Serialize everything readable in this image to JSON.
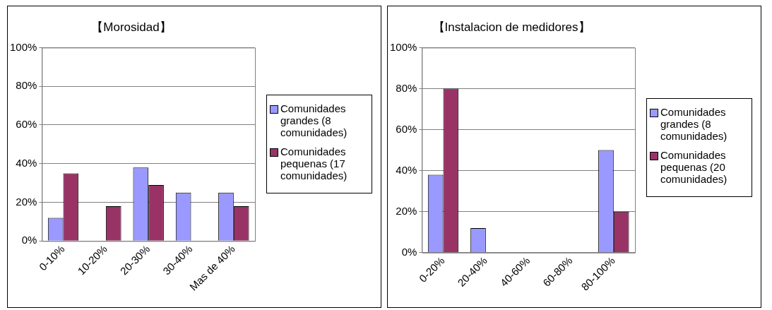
{
  "chart_data": [
    {
      "type": "bar",
      "title": "【Morosidad】",
      "categories": [
        "0-10%",
        "10-20%",
        "20-30%",
        "30-40%",
        "Mas de 40%"
      ],
      "series": [
        {
          "name": "Comunidades grandes (8 comunidades)",
          "color": "#9999ff",
          "values": [
            12,
            0,
            38,
            25,
            25
          ]
        },
        {
          "name": "Comunidades pequenas (17 comunidades)",
          "color": "#993366",
          "values": [
            35,
            18,
            29,
            0,
            18
          ]
        }
      ],
      "ylim": [
        0,
        100
      ],
      "yticks": [
        {
          "value": 0,
          "label": "0%"
        },
        {
          "value": 20,
          "label": "20%"
        },
        {
          "value": 40,
          "label": "40%"
        },
        {
          "value": 60,
          "label": "60%"
        },
        {
          "value": 80,
          "label": "80%"
        },
        {
          "value": 100,
          "label": "100%"
        }
      ],
      "grid": "y",
      "legend": "right"
    },
    {
      "type": "bar",
      "title": "【Instalacion de medidores】",
      "categories": [
        "0-20%",
        "20-40%",
        "40-60%",
        "60-80%",
        "80-100%"
      ],
      "series": [
        {
          "name": "Comunidades grandes (8 comunidades)",
          "color": "#9999ff",
          "values": [
            38,
            12,
            0,
            0,
            50
          ]
        },
        {
          "name": "Comunidades pequenas (20 comunidades)",
          "color": "#993366",
          "values": [
            80,
            0,
            0,
            0,
            20
          ]
        }
      ],
      "ylim": [
        0,
        100
      ],
      "yticks": [
        {
          "value": 0,
          "label": "0%"
        },
        {
          "value": 20,
          "label": "20%"
        },
        {
          "value": 40,
          "label": "40%"
        },
        {
          "value": 60,
          "label": "60%"
        },
        {
          "value": 80,
          "label": "80%"
        },
        {
          "value": 100,
          "label": "100%"
        }
      ],
      "grid": "y",
      "legend": "right"
    }
  ]
}
